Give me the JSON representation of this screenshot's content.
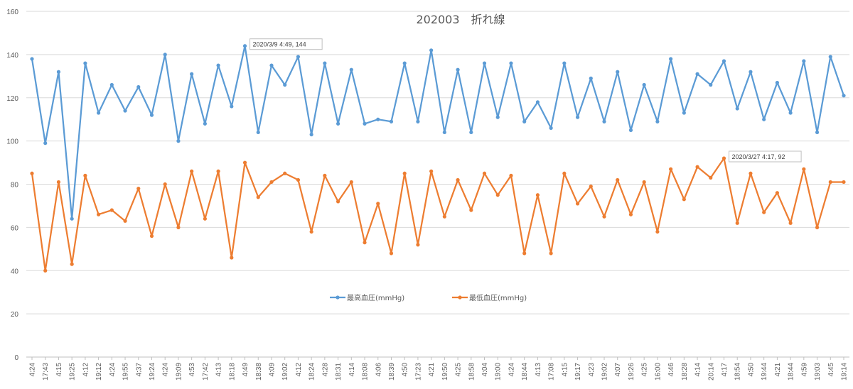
{
  "chart_data": {
    "type": "line",
    "title": "202003　折れ線",
    "ylim": [
      0,
      160
    ],
    "yticks": [
      0,
      20,
      40,
      60,
      80,
      100,
      120,
      140,
      160
    ],
    "grid": true,
    "legend_position": "bottom-center",
    "categories": [
      "4:24",
      "17:43",
      "4:15",
      "19:25",
      "4:12",
      "19:12",
      "4:24",
      "19:55",
      "4:37",
      "19:24",
      "4:24",
      "19:09",
      "4:53",
      "17:42",
      "4:13",
      "18:18",
      "4:49",
      "18:38",
      "4:09",
      "19:02",
      "4:12",
      "18:24",
      "4:28",
      "18:31",
      "4:14",
      "18:08",
      "4:06",
      "18:39",
      "4:50",
      "17:23",
      "4:21",
      "19:50",
      "4:25",
      "18:58",
      "4:04",
      "19:00",
      "4:24",
      "18:44",
      "4:13",
      "17:08",
      "4:15",
      "19:17",
      "4:23",
      "19:02",
      "4:07",
      "19:26",
      "4:25",
      "16:00",
      "4:46",
      "18:28",
      "4:14",
      "20:14",
      "4:17",
      "18:54",
      "4:50",
      "19:44",
      "4:21",
      "18:44",
      "4:59",
      "19:03",
      "4:45",
      "19:14"
    ],
    "series": [
      {
        "name": "最高血圧(mmHg)",
        "color": "#5B9BD5",
        "values": [
          138,
          99,
          132,
          64,
          136,
          113,
          126,
          114,
          125,
          112,
          140,
          100,
          131,
          108,
          135,
          116,
          144,
          104,
          135,
          126,
          139,
          103,
          136,
          108,
          133,
          108,
          110,
          109,
          136,
          109,
          142,
          104,
          133,
          104,
          136,
          111,
          136,
          109,
          118,
          106,
          136,
          111,
          129,
          109,
          132,
          105,
          126,
          109,
          138,
          113,
          131,
          126,
          137,
          115,
          132,
          110,
          127,
          113,
          137,
          104,
          139,
          121
        ]
      },
      {
        "name": "最低血圧(mmHg)",
        "color": "#ED7D31",
        "values": [
          85,
          40,
          81,
          43,
          84,
          66,
          68,
          63,
          78,
          56,
          80,
          60,
          86,
          64,
          86,
          46,
          90,
          74,
          81,
          85,
          82,
          58,
          84,
          72,
          81,
          53,
          71,
          48,
          85,
          52,
          86,
          65,
          82,
          68,
          85,
          75,
          84,
          48,
          75,
          48,
          85,
          71,
          79,
          65,
          82,
          66,
          81,
          58,
          87,
          73,
          88,
          83,
          92,
          62,
          85,
          67,
          76,
          62,
          87,
          60,
          81,
          81
        ]
      }
    ],
    "annotations": [
      {
        "series": 0,
        "index": 16,
        "text": "2020/3/9 4:49, 144"
      },
      {
        "series": 1,
        "index": 52,
        "text": "2020/3/27 4:17, 92"
      }
    ]
  }
}
